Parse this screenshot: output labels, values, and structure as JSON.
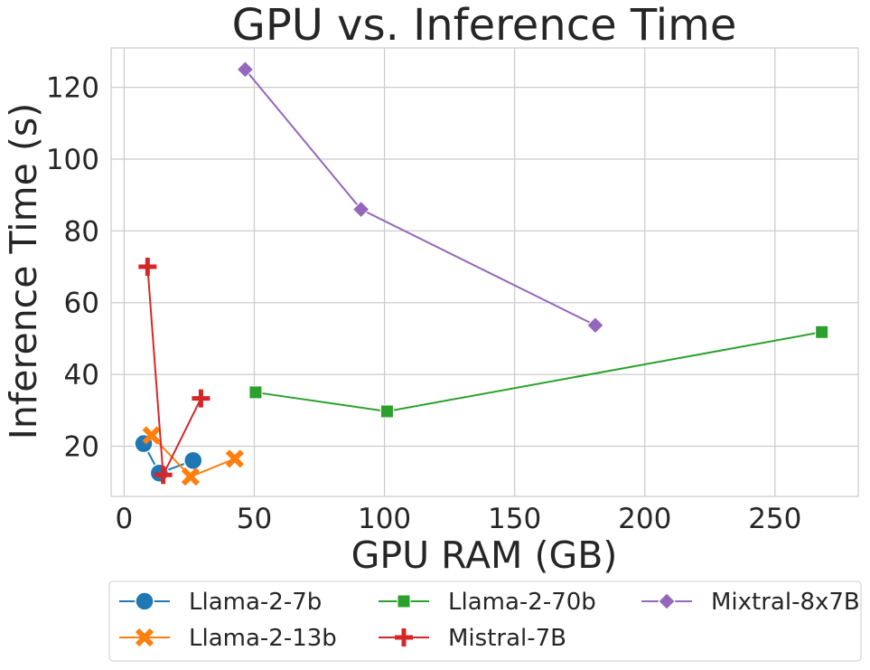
{
  "chart_data": {
    "type": "line",
    "title": "GPU vs. Inference Time",
    "xlabel": "GPU RAM (GB)",
    "ylabel": "Inference Time (s)",
    "xlim": [
      -5,
      282
    ],
    "ylim": [
      6,
      131
    ],
    "xticks": [
      0,
      50,
      100,
      150,
      200,
      250
    ],
    "yticks": [
      20,
      40,
      60,
      80,
      100,
      120
    ],
    "grid": true,
    "legend_position": "bottom",
    "series": [
      {
        "name": "Llama-2-7b",
        "color": "#1f77b4",
        "marker": "circle",
        "x": [
          7.5,
          13.5,
          26.5
        ],
        "y": [
          20.7,
          12.5,
          16.0
        ]
      },
      {
        "name": "Llama-2-13b",
        "color": "#ff7f0e",
        "marker": "x",
        "x": [
          10.5,
          25.5,
          42.5
        ],
        "y": [
          23.0,
          11.5,
          16.5
        ]
      },
      {
        "name": "Llama-2-70b",
        "color": "#2ca02c",
        "marker": "square",
        "x": [
          50.5,
          101,
          268
        ],
        "y": [
          35.0,
          29.7,
          51.8
        ]
      },
      {
        "name": "Mistral-7B",
        "color": "#d62728",
        "marker": "plus",
        "x": [
          9,
          15,
          29.5
        ],
        "y": [
          70.0,
          12.0,
          33.3
        ]
      },
      {
        "name": "Mixtral-8x7B",
        "color": "#9467bd",
        "marker": "diamond",
        "x": [
          46.5,
          91,
          181
        ],
        "y": [
          125.0,
          86.0,
          53.7
        ]
      }
    ]
  }
}
